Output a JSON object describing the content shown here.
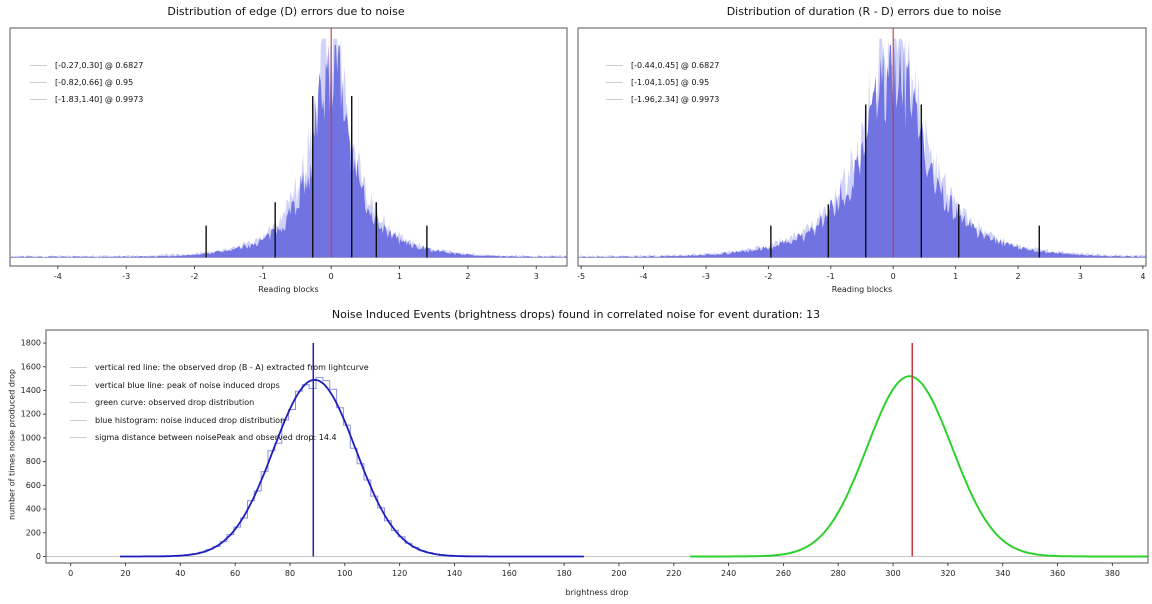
{
  "figure": {
    "colors": {
      "histogram_fill": "#6c6ee0",
      "histogram_fill_light": "#a3a6ef",
      "red_line": "#c8383d",
      "black_line": "#0d0d0d",
      "blue_vline": "#2424b4",
      "blue_curve": "#1d1dbb",
      "blue_hist_step": "#8d90e8",
      "green_curve": "#2ed02e",
      "baseline_gray": "#c4c4c4",
      "spine": "#555555",
      "tick_text": "#222222"
    }
  },
  "chart_data": [
    {
      "type": "histogram",
      "title": "Distribution of edge (D) errors due to noise",
      "xlabel": "Reading blocks",
      "xlim": [
        -4.7,
        3.45
      ],
      "xticks": [
        -4,
        -3,
        -2,
        -1,
        0,
        1,
        2,
        3
      ],
      "ylim_norm": [
        -0.04,
        1.08
      ],
      "grid": false,
      "center_line_x": 0,
      "distribution": {
        "center": 0,
        "components": [
          {
            "sigma": 0.15,
            "weight": 0.45
          },
          {
            "sigma": 0.38,
            "weight": 0.42
          },
          {
            "sigma": 0.9,
            "weight": 0.13
          }
        ],
        "peak_norm": 1.0,
        "seed": 7
      },
      "confidence_intervals": [
        {
          "range": [
            -0.27,
            0.3
          ],
          "level": 0.6827,
          "line_height_norm": 0.76
        },
        {
          "range": [
            -0.82,
            0.66
          ],
          "level": 0.95,
          "line_height_norm": 0.26
        },
        {
          "range": [
            -1.83,
            1.4
          ],
          "level": 0.9973,
          "line_height_norm": 0.15
        }
      ],
      "legend": [
        "[-0.27,0.30] @ 0.6827",
        "[-0.82,0.66] @ 0.95",
        "[-1.83,1.40] @ 0.9973"
      ],
      "legend_position": "upper left"
    },
    {
      "type": "histogram",
      "title": "Distribution of duration (R - D) errors due to noise",
      "xlabel": "Reading blocks",
      "xlim": [
        -5.05,
        4.05
      ],
      "xticks": [
        -5,
        -4,
        -3,
        -2,
        -1,
        0,
        1,
        2,
        3,
        4
      ],
      "ylim_norm": [
        -0.04,
        1.08
      ],
      "grid": false,
      "center_line_x": 0,
      "distribution": {
        "center": 0,
        "components": [
          {
            "sigma": 0.28,
            "weight": 0.4
          },
          {
            "sigma": 0.62,
            "weight": 0.45
          },
          {
            "sigma": 1.3,
            "weight": 0.15
          }
        ],
        "peak_norm": 0.96,
        "seed": 13
      },
      "confidence_intervals": [
        {
          "range": [
            -0.44,
            0.45
          ],
          "level": 0.6827,
          "line_height_norm": 0.72
        },
        {
          "range": [
            -1.04,
            1.05
          ],
          "level": 0.95,
          "line_height_norm": 0.25
        },
        {
          "range": [
            -1.96,
            2.34
          ],
          "level": 0.9973,
          "line_height_norm": 0.15
        }
      ],
      "legend": [
        "[-0.44,0.45] @ 0.6827",
        "[-1.04,1.05] @ 0.95",
        "[-1.96,2.34] @ 0.9973"
      ],
      "legend_position": "upper left"
    },
    {
      "type": "histogram_with_curves",
      "title": "Noise Induced Events (brightness drops) found in correlated noise for event duration: 13",
      "xlabel": "brightness drop",
      "ylabel": "number of times noise produced drop",
      "xlim": [
        -9,
        393
      ],
      "ylim": [
        -55,
        1910
      ],
      "xticks": [
        0,
        20,
        40,
        60,
        80,
        100,
        120,
        140,
        160,
        180,
        200,
        220,
        240,
        260,
        280,
        300,
        320,
        340,
        360,
        380
      ],
      "yticks": [
        0,
        200,
        400,
        600,
        800,
        1000,
        1200,
        1400,
        1600,
        1800
      ],
      "grid": false,
      "noise_histogram": {
        "center": 89,
        "sigma": 15,
        "peak": 1490,
        "bin_width": 2.5,
        "range": [
          27,
          178
        ],
        "seed": 21
      },
      "noise_fit_curve": {
        "center": 89,
        "sigma": 15,
        "peak": 1490,
        "range": [
          18,
          188
        ]
      },
      "observed_curve": {
        "center": 306,
        "sigma": 15.5,
        "peak": 1520,
        "range": [
          226,
          393
        ]
      },
      "vertical_lines": [
        {
          "x": 88.5,
          "color_key": "blue_vline",
          "top": 1800
        },
        {
          "x": 307,
          "color_key": "red_line",
          "top": 1800
        }
      ],
      "sigma_distance": 14.4,
      "legend": [
        "vertical red line: the observed drop (B - A) extracted from lightcurve",
        "vertical blue line: peak of noise induced drops",
        "green curve: observed drop distribution",
        "blue histogram: noise induced drop distribution",
        "sigma distance between noisePeak and observed drop: 14.4"
      ],
      "legend_position": "upper left"
    }
  ]
}
